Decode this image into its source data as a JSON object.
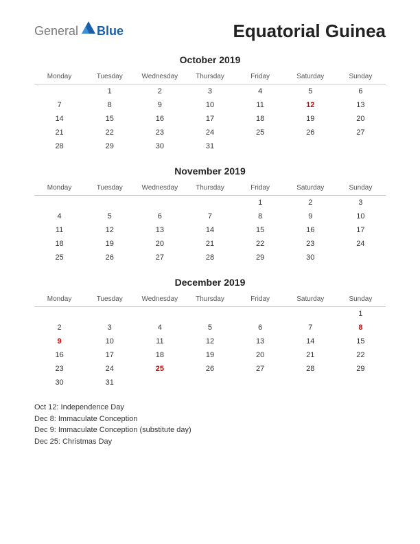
{
  "logo": {
    "text1": "General",
    "text2": "Blue"
  },
  "page_title": "Equatorial Guinea",
  "colors": {
    "logo_gray": "#7a7a7a",
    "logo_blue": "#1a5fa8",
    "holiday_red": "#cc0000",
    "divider": "#cccccc",
    "text": "#333333",
    "background": "#ffffff"
  },
  "day_headers": [
    "Monday",
    "Tuesday",
    "Wednesday",
    "Thursday",
    "Friday",
    "Saturday",
    "Sunday"
  ],
  "months": [
    {
      "title": "October 2019",
      "weeks": [
        [
          "",
          "1",
          "2",
          "3",
          "4",
          "5",
          "6"
        ],
        [
          "7",
          "8",
          "9",
          "10",
          "11",
          "12",
          "13"
        ],
        [
          "14",
          "15",
          "16",
          "17",
          "18",
          "19",
          "20"
        ],
        [
          "21",
          "22",
          "23",
          "24",
          "25",
          "26",
          "27"
        ],
        [
          "28",
          "29",
          "30",
          "31",
          "",
          "",
          ""
        ]
      ],
      "holidays": [
        "12"
      ]
    },
    {
      "title": "November 2019",
      "weeks": [
        [
          "",
          "",
          "",
          "",
          "1",
          "2",
          "3"
        ],
        [
          "4",
          "5",
          "6",
          "7",
          "8",
          "9",
          "10"
        ],
        [
          "11",
          "12",
          "13",
          "14",
          "15",
          "16",
          "17"
        ],
        [
          "18",
          "19",
          "20",
          "21",
          "22",
          "23",
          "24"
        ],
        [
          "25",
          "26",
          "27",
          "28",
          "29",
          "30",
          ""
        ]
      ],
      "holidays": []
    },
    {
      "title": "December 2019",
      "weeks": [
        [
          "",
          "",
          "",
          "",
          "",
          "",
          "1"
        ],
        [
          "2",
          "3",
          "4",
          "5",
          "6",
          "7",
          "8"
        ],
        [
          "9",
          "10",
          "11",
          "12",
          "13",
          "14",
          "15"
        ],
        [
          "16",
          "17",
          "18",
          "19",
          "20",
          "21",
          "22"
        ],
        [
          "23",
          "24",
          "25",
          "26",
          "27",
          "28",
          "29"
        ],
        [
          "30",
          "31",
          "",
          "",
          "",
          "",
          ""
        ]
      ],
      "holidays": [
        "8",
        "9",
        "25"
      ]
    }
  ],
  "holiday_list": [
    "Oct 12: Independence Day",
    "Dec 8: Immaculate Conception",
    "Dec 9: Immaculate Conception (substitute day)",
    "Dec 25: Christmas Day"
  ]
}
